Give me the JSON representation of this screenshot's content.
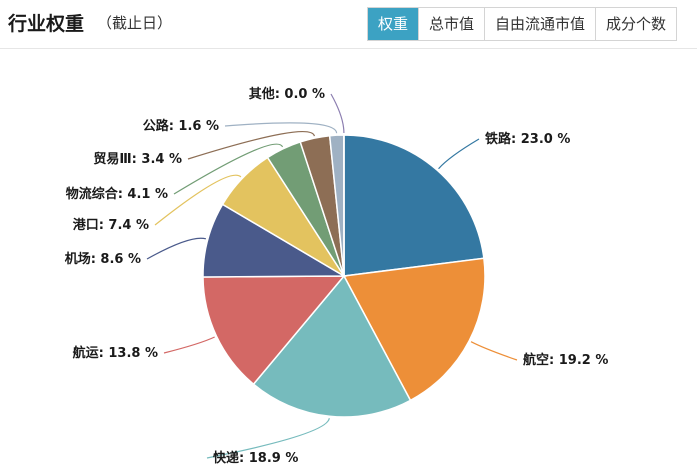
{
  "header": {
    "title": "行业权重",
    "subtitle": "（截止日）"
  },
  "tabs": [
    {
      "label": "权重",
      "active": true
    },
    {
      "label": "总市值",
      "active": false
    },
    {
      "label": "自由流通市值",
      "active": false
    },
    {
      "label": "成分个数",
      "active": false
    }
  ],
  "chart_data": {
    "type": "pie",
    "unit": "%",
    "slices": [
      {
        "name": "铁路",
        "value": 23.0,
        "display": "23.0",
        "color": "#3478a2"
      },
      {
        "name": "航空",
        "value": 19.2,
        "display": "19.2",
        "color": "#ed8f38"
      },
      {
        "name": "快递",
        "value": 18.9,
        "display": "18.9",
        "color": "#76bbbd"
      },
      {
        "name": "航运",
        "value": 13.8,
        "display": "13.8",
        "color": "#d36865"
      },
      {
        "name": "机场",
        "value": 8.6,
        "display": "8.6",
        "color": "#4a5a8b"
      },
      {
        "name": "港口",
        "value": 7.4,
        "display": "7.4",
        "color": "#e3c35f"
      },
      {
        "name": "物流综合",
        "value": 4.1,
        "display": "4.1",
        "color": "#729d75"
      },
      {
        "name": "贸易Ⅲ",
        "value": 3.4,
        "display": "3.4",
        "color": "#8d6e55"
      },
      {
        "name": "公路",
        "value": 1.6,
        "display": "1.6",
        "color": "#9fb1c3"
      },
      {
        "name": "其他",
        "value": 0.02,
        "display": "0.0",
        "color": "#8c7eb0"
      }
    ]
  }
}
